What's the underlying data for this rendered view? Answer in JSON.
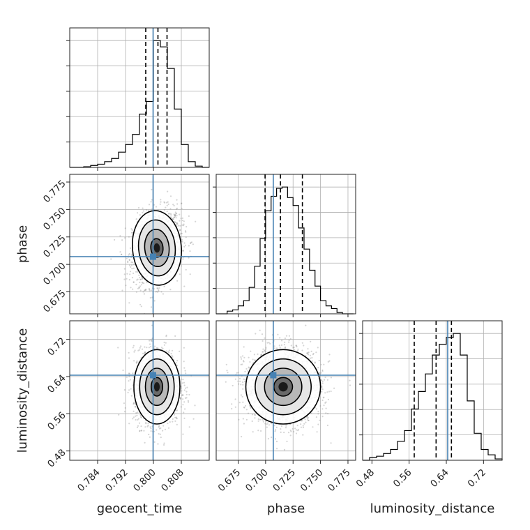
{
  "colors": {
    "truth": "#4682b4",
    "contour": "#000000",
    "histogram": "#000000",
    "grid": "#b0b0b0",
    "scatter": "#888888",
    "frame": "#222222"
  },
  "chart_data": {
    "type": "corner",
    "parameters": [
      "geocent_time",
      "phase",
      "luminosity_distance"
    ],
    "axis_labels": {
      "geocent_time": "geocent_time",
      "phase": "phase",
      "luminosity_distance": "luminosity_distance"
    },
    "ranges": {
      "geocent_time": [
        0.776,
        0.816
      ],
      "phase": [
        0.655,
        0.782
      ],
      "luminosity_distance": [
        0.46,
        0.76
      ]
    },
    "ticks": {
      "geocent_time": [
        "0.784",
        "0.792",
        "0.800",
        "0.808"
      ],
      "phase": [
        "0.675",
        "0.700",
        "0.725",
        "0.750",
        "0.775"
      ],
      "luminosity_distance": [
        "0.48",
        "0.56",
        "0.64",
        "0.72"
      ]
    },
    "truths": {
      "geocent_time": 0.7999,
      "phase": 0.707,
      "luminosity_distance": 0.643
    },
    "quantiles": {
      "geocent_time": [
        0.7978,
        0.8013,
        0.8039
      ],
      "phase": [
        0.6995,
        0.7135,
        0.7335
      ],
      "luminosity_distance": [
        0.571,
        0.618,
        0.651
      ]
    },
    "grid": true,
    "histograms": {
      "geocent_time": {
        "edges": [
          0.776,
          0.778,
          0.78,
          0.782,
          0.784,
          0.786,
          0.788,
          0.79,
          0.792,
          0.794,
          0.796,
          0.798,
          0.8,
          0.802,
          0.804,
          0.806,
          0.808,
          0.81,
          0.812,
          0.814,
          0.816
        ],
        "counts": [
          0,
          0,
          0.005,
          0.015,
          0.025,
          0.045,
          0.07,
          0.12,
          0.18,
          0.26,
          0.42,
          0.52,
          1.0,
          0.95,
          0.78,
          0.46,
          0.18,
          0.045,
          0.01,
          0
        ]
      },
      "phase": {
        "edges": [
          0.655,
          0.66,
          0.665,
          0.67,
          0.675,
          0.68,
          0.685,
          0.69,
          0.695,
          0.7,
          0.705,
          0.71,
          0.715,
          0.72,
          0.725,
          0.73,
          0.735,
          0.74,
          0.745,
          0.75,
          0.755,
          0.76,
          0.765,
          0.77,
          0.775,
          0.78
        ],
        "counts": [
          0,
          0,
          0.02,
          0.03,
          0.06,
          0.1,
          0.2,
          0.36,
          0.57,
          0.78,
          0.89,
          0.95,
          0.96,
          0.88,
          0.82,
          0.65,
          0.49,
          0.33,
          0.21,
          0.1,
          0.06,
          0.04,
          0.01,
          0,
          0
        ]
      },
      "luminosity_distance": {
        "edges": [
          0.46,
          0.475,
          0.49,
          0.505,
          0.52,
          0.535,
          0.55,
          0.565,
          0.58,
          0.595,
          0.61,
          0.625,
          0.64,
          0.655,
          0.67,
          0.685,
          0.7,
          0.715,
          0.73,
          0.745,
          0.76
        ],
        "counts": [
          0,
          0.02,
          0.03,
          0.05,
          0.08,
          0.14,
          0.22,
          0.38,
          0.51,
          0.64,
          0.78,
          0.86,
          0.91,
          0.94,
          0.78,
          0.44,
          0.2,
          0.08,
          0.04,
          0.01
        ]
      }
    },
    "pairs": [
      {
        "x": "geocent_time",
        "y": "phase",
        "center": [
          0.801,
          0.715
        ],
        "sigma": [
          0.0035,
          0.017
        ],
        "rho": 0.2,
        "levels_sigma": [
          0.5,
          1.0,
          1.5,
          2.0
        ],
        "points": 1600
      },
      {
        "x": "geocent_time",
        "y": "luminosity_distance",
        "center": [
          0.801,
          0.618
        ],
        "sigma": [
          0.0033,
          0.04
        ],
        "rho": 0.0,
        "levels_sigma": [
          0.5,
          1.0,
          1.5,
          2.0
        ],
        "points": 1600
      },
      {
        "x": "phase",
        "y": "luminosity_distance",
        "center": [
          0.716,
          0.618
        ],
        "sigma": [
          0.017,
          0.04
        ],
        "rho": 0.0,
        "levels_sigma": [
          0.5,
          1.0,
          1.5,
          2.0
        ],
        "points": 2000
      }
    ]
  }
}
